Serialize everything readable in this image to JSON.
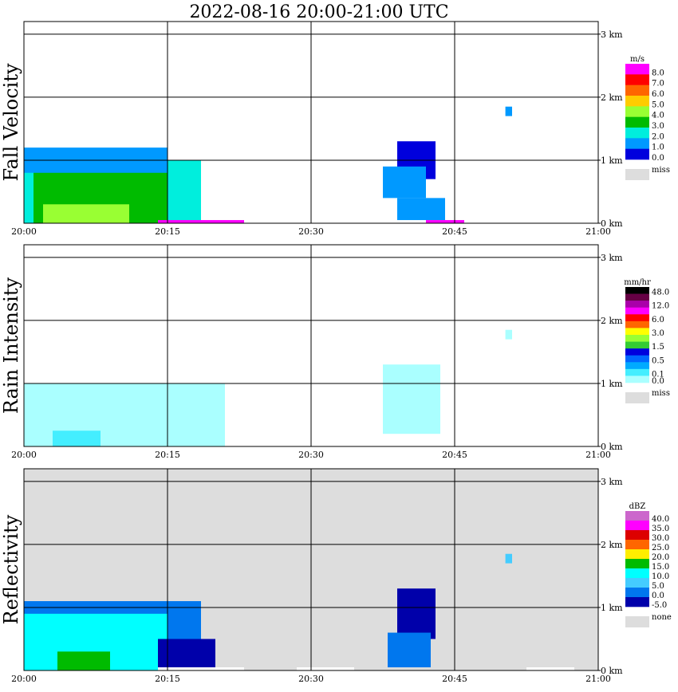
{
  "title": "2022-08-16  20:00-21:00 UTC",
  "x_ticks": [
    "20:00",
    "20:15",
    "20:30",
    "20:45",
    "21:00"
  ],
  "y_ticks": [
    "0 km",
    "1 km",
    "2 km",
    "3 km"
  ],
  "panels": [
    {
      "label": "Fall Velocity",
      "unit": "m/s",
      "background": "#ffffff",
      "legend": [
        {
          "label": "8.0",
          "color": "#ff00ff"
        },
        {
          "label": "7.0",
          "color": "#ff0000"
        },
        {
          "label": "6.0",
          "color": "#ff6600"
        },
        {
          "label": "5.0",
          "color": "#ffcc00"
        },
        {
          "label": "4.0",
          "color": "#99ff33"
        },
        {
          "label": "3.0",
          "color": "#00bb00"
        },
        {
          "label": "2.0",
          "color": "#00eedd"
        },
        {
          "label": "1.0",
          "color": "#0099ff"
        },
        {
          "label": "0.0",
          "color": "#0000dd"
        }
      ],
      "miss_label": "miss"
    },
    {
      "label": "Rain Intensity",
      "unit": "mm/hr",
      "background": "#ffffff",
      "legend": [
        {
          "label": "48.0",
          "color": "#000000"
        },
        {
          "label": "",
          "color": "#660044"
        },
        {
          "label": "12.0",
          "color": "#aa00aa"
        },
        {
          "label": "",
          "color": "#ff00ff"
        },
        {
          "label": "6.0",
          "color": "#ff0000"
        },
        {
          "label": "",
          "color": "#ff6600"
        },
        {
          "label": "3.0",
          "color": "#ffff00"
        },
        {
          "label": "",
          "color": "#99ff33"
        },
        {
          "label": "1.5",
          "color": "#33cc33"
        },
        {
          "label": "",
          "color": "#0000dd"
        },
        {
          "label": "0.5",
          "color": "#0066ff"
        },
        {
          "label": "",
          "color": "#00aaff"
        },
        {
          "label": "0.1",
          "color": "#44eeff"
        },
        {
          "label": "0.0",
          "color": "#aaffff"
        }
      ],
      "miss_label": "miss"
    },
    {
      "label": "Reflectivity",
      "unit": "dBZ",
      "background": "#dddddd",
      "legend": [
        {
          "label": "40.0",
          "color": "#cc66cc"
        },
        {
          "label": "35.0",
          "color": "#ff00ff"
        },
        {
          "label": "30.0",
          "color": "#dd0000"
        },
        {
          "label": "25.0",
          "color": "#ff6600"
        },
        {
          "label": "20.0",
          "color": "#ffee00"
        },
        {
          "label": "15.0",
          "color": "#00bb00"
        },
        {
          "label": "10.0",
          "color": "#00ffff"
        },
        {
          "label": "5.0",
          "color": "#44ccff"
        },
        {
          "label": "0.0",
          "color": "#0077ee"
        },
        {
          "label": "-5.0",
          "color": "#0000aa"
        }
      ],
      "miss_label": "none"
    }
  ],
  "chart_data": {
    "type": "heatmap",
    "title": "2022-08-16  20:00-21:00 UTC",
    "x_range": [
      "20:00",
      "21:00"
    ],
    "y_range_km": [
      0,
      3.2
    ],
    "grid": true,
    "echoes": [
      {
        "panel": "Fall Velocity",
        "color": "#00eedd",
        "t0": 0,
        "t1": 18.5,
        "h0": 0,
        "h1": 1.0
      },
      {
        "panel": "Fall Velocity",
        "color": "#00bb00",
        "t0": 1,
        "t1": 15,
        "h0": 0,
        "h1": 0.9
      },
      {
        "panel": "Fall Velocity",
        "color": "#99ff33",
        "t0": 2,
        "t1": 11,
        "h0": 0,
        "h1": 0.3
      },
      {
        "panel": "Fall Velocity",
        "color": "#0099ff",
        "t0": 0,
        "t1": 15,
        "h0": 0.8,
        "h1": 1.2
      },
      {
        "panel": "Fall Velocity",
        "color": "#0000dd",
        "t0": 39,
        "t1": 43,
        "h0": 0.7,
        "h1": 1.3
      },
      {
        "panel": "Fall Velocity",
        "color": "#0099ff",
        "t0": 37.5,
        "t1": 42,
        "h0": 0.4,
        "h1": 0.9
      },
      {
        "panel": "Fall Velocity",
        "color": "#0099ff",
        "t0": 39,
        "t1": 44,
        "h0": 0.05,
        "h1": 0.4
      },
      {
        "panel": "Fall Velocity",
        "color": "#ff00ff",
        "t0": 14,
        "t1": 23,
        "h0": 0,
        "h1": 0.05
      },
      {
        "panel": "Fall Velocity",
        "color": "#ff00ff",
        "t0": 42,
        "t1": 46,
        "h0": 0,
        "h1": 0.05
      },
      {
        "panel": "Fall Velocity",
        "color": "#0099ff",
        "t0": 50.3,
        "t1": 51,
        "h0": 1.7,
        "h1": 1.85
      },
      {
        "panel": "Rain Intensity",
        "color": "#aaffff",
        "t0": 0,
        "t1": 21,
        "h0": 0,
        "h1": 1.0
      },
      {
        "panel": "Rain Intensity",
        "color": "#aaffff",
        "t0": 37.5,
        "t1": 43.5,
        "h0": 0.2,
        "h1": 1.3
      },
      {
        "panel": "Rain Intensity",
        "color": "#44eeff",
        "t0": 3,
        "t1": 8,
        "h0": 0,
        "h1": 0.25
      },
      {
        "panel": "Rain Intensity",
        "color": "#aaffff",
        "t0": 50.3,
        "t1": 51,
        "h0": 1.7,
        "h1": 1.85
      },
      {
        "panel": "Reflectivity",
        "color": "#0077ee",
        "t0": 0,
        "t1": 18.5,
        "h0": 0,
        "h1": 1.1
      },
      {
        "panel": "Reflectivity",
        "color": "#00ffff",
        "t0": 0,
        "t1": 15,
        "h0": 0,
        "h1": 0.9
      },
      {
        "panel": "Reflectivity",
        "color": "#00bb00",
        "t0": 3.5,
        "t1": 9,
        "h0": 0,
        "h1": 0.3
      },
      {
        "panel": "Reflectivity",
        "color": "#0000aa",
        "t0": 14,
        "t1": 20,
        "h0": 0,
        "h1": 0.5
      },
      {
        "panel": "Reflectivity",
        "color": "#0000aa",
        "t0": 39,
        "t1": 43,
        "h0": 0.5,
        "h1": 1.3
      },
      {
        "panel": "Reflectivity",
        "color": "#0077ee",
        "t0": 38,
        "t1": 42.5,
        "h0": 0.05,
        "h1": 0.6
      },
      {
        "panel": "Reflectivity",
        "color": "#ffffff",
        "t0": 14,
        "t1": 23,
        "h0": 0,
        "h1": 0.05
      },
      {
        "panel": "Reflectivity",
        "color": "#ffffff",
        "t0": 28.5,
        "t1": 34.5,
        "h0": 0,
        "h1": 0.05
      },
      {
        "panel": "Reflectivity",
        "color": "#ffffff",
        "t0": 52.5,
        "t1": 57.5,
        "h0": 0,
        "h1": 0.05
      },
      {
        "panel": "Reflectivity",
        "color": "#44ccff",
        "t0": 50.3,
        "t1": 51,
        "h0": 1.7,
        "h1": 1.85
      }
    ]
  }
}
